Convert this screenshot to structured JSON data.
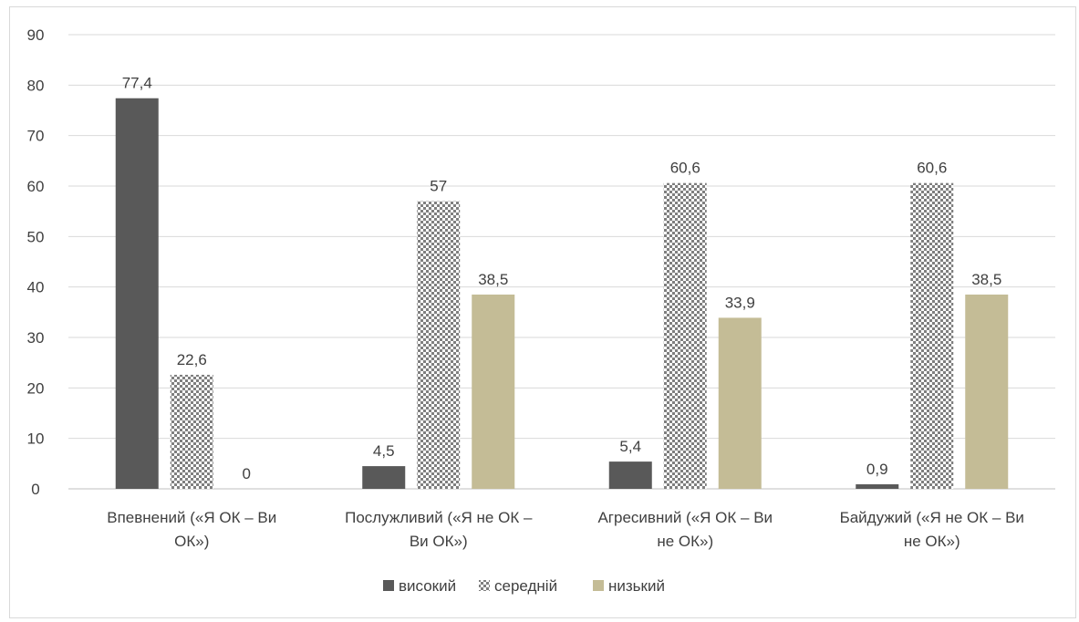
{
  "chart_data": {
    "type": "bar",
    "title": "",
    "xlabel": "",
    "ylabel": "",
    "ylim": [
      0,
      90
    ],
    "yticks": [
      0,
      10,
      20,
      30,
      40,
      50,
      60,
      70,
      80,
      90
    ],
    "grid": true,
    "legend_position": "bottom",
    "categories": [
      [
        "Впевнений («Я ОК – Ви",
        "ОК»)"
      ],
      [
        "Послужливий («Я не ОК –",
        "Ви ОК»)"
      ],
      [
        "Агресивний («Я ОК – Ви",
        "не ОК»)"
      ],
      [
        "Байдужий («Я не ОК – Ви",
        "не ОК»)"
      ]
    ],
    "series": [
      {
        "name": "високий",
        "values": [
          77.4,
          4.5,
          5.4,
          0.9
        ],
        "labels": [
          "77,4",
          "4,5",
          "5,4",
          "0,9"
        ],
        "color": "#595959",
        "pattern": "solid"
      },
      {
        "name": "середній",
        "values": [
          22.6,
          57,
          60.6,
          60.6
        ],
        "labels": [
          "22,6",
          "57",
          "60,6",
          "60,6"
        ],
        "color": "#7f7f7f",
        "pattern": "checker"
      },
      {
        "name": "низький",
        "values": [
          0,
          38.5,
          33.9,
          38.5
        ],
        "labels": [
          "0",
          "38,5",
          "33,9",
          "38,5"
        ],
        "color": "#c4bc96",
        "pattern": "solid"
      }
    ]
  }
}
